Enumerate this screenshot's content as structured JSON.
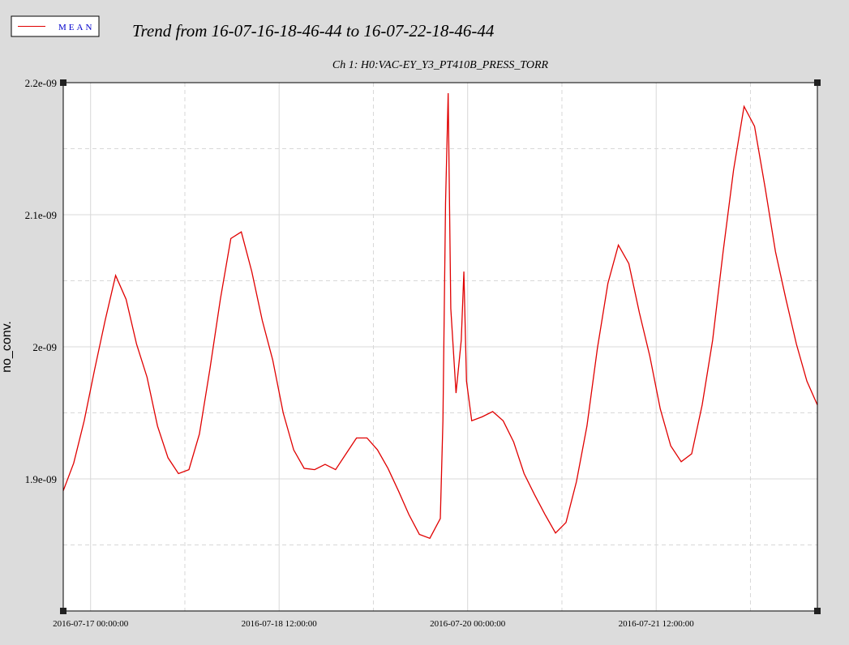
{
  "chart_data": {
    "type": "line",
    "title": "Trend from 16-07-16-18-46-44 to 16-07-22-18-46-44",
    "subtitle": "Ch 1: H0:VAC-EY_Y3_PT410B_PRESS_TORR",
    "ylabel": "no_conv.",
    "grid": true,
    "legend": "top-left",
    "xlim": [
      "2016-07-16 18:46:44",
      "2016-07-22 18:46:44"
    ],
    "xticks": [
      "2016-07-17 00:00:00",
      "2016-07-18 12:00:00",
      "2016-07-20 00:00:00",
      "2016-07-21 12:00:00"
    ],
    "x_minor_ticks": [
      "2016-07-17 18:00:00",
      "2016-07-19 06:00:00",
      "2016-07-20 18:00:00",
      "2016-07-22 06:00:00"
    ],
    "ylim": [
      1.8e-09,
      2.2e-09
    ],
    "yticks": [
      {
        "value": 1.9e-09,
        "label": "1.9e-09"
      },
      {
        "value": 2e-09,
        "label": "2e-09"
      },
      {
        "value": 2.1e-09,
        "label": "2.1e-09"
      },
      {
        "value": 2.2e-09,
        "label": "2.2e-09"
      }
    ],
    "y_minor_ticks": [
      1.85e-09,
      1.95e-09,
      2.05e-09,
      2.15e-09
    ],
    "x": [
      "2016-07-16 18:46:44",
      "2016-07-16 20:46:44",
      "2016-07-16 22:46:44",
      "2016-07-17 00:46:44",
      "2016-07-17 02:46:44",
      "2016-07-17 04:46:44",
      "2016-07-17 06:46:44",
      "2016-07-17 08:46:44",
      "2016-07-17 10:46:44",
      "2016-07-17 12:46:44",
      "2016-07-17 14:46:44",
      "2016-07-17 16:46:44",
      "2016-07-17 18:46:44",
      "2016-07-17 20:46:44",
      "2016-07-17 22:46:44",
      "2016-07-18 00:46:44",
      "2016-07-18 02:46:44",
      "2016-07-18 04:46:44",
      "2016-07-18 06:46:44",
      "2016-07-18 08:46:44",
      "2016-07-18 10:46:44",
      "2016-07-18 12:46:44",
      "2016-07-18 14:46:44",
      "2016-07-18 16:46:44",
      "2016-07-18 18:46:44",
      "2016-07-18 20:46:44",
      "2016-07-18 22:46:44",
      "2016-07-19 00:46:44",
      "2016-07-19 02:46:44",
      "2016-07-19 04:46:44",
      "2016-07-19 06:46:44",
      "2016-07-19 08:46:44",
      "2016-07-19 10:46:44",
      "2016-07-19 12:46:44",
      "2016-07-19 14:46:44",
      "2016-07-19 16:46:44",
      "2016-07-19 18:46:44",
      "2016-07-19 19:16:44",
      "2016-07-19 19:46:44",
      "2016-07-19 20:16:44",
      "2016-07-19 20:46:44",
      "2016-07-19 21:46:44",
      "2016-07-19 22:46:44",
      "2016-07-19 23:16:44",
      "2016-07-19 23:46:44",
      "2016-07-20 00:46:44",
      "2016-07-20 02:46:44",
      "2016-07-20 04:46:44",
      "2016-07-20 06:46:44",
      "2016-07-20 08:46:44",
      "2016-07-20 10:46:44",
      "2016-07-20 12:46:44",
      "2016-07-20 14:46:44",
      "2016-07-20 16:46:44",
      "2016-07-20 18:46:44",
      "2016-07-20 20:46:44",
      "2016-07-20 22:46:44",
      "2016-07-21 00:46:44",
      "2016-07-21 02:46:44",
      "2016-07-21 04:46:44",
      "2016-07-21 06:46:44",
      "2016-07-21 08:46:44",
      "2016-07-21 10:46:44",
      "2016-07-21 12:46:44",
      "2016-07-21 14:46:44",
      "2016-07-21 16:46:44",
      "2016-07-21 18:46:44",
      "2016-07-21 20:46:44",
      "2016-07-21 22:46:44",
      "2016-07-22 00:46:44",
      "2016-07-22 02:46:44",
      "2016-07-22 04:46:44",
      "2016-07-22 06:46:44",
      "2016-07-22 08:46:44",
      "2016-07-22 10:46:44",
      "2016-07-22 12:46:44",
      "2016-07-22 14:46:44",
      "2016-07-22 16:46:44",
      "2016-07-22 18:46:44"
    ],
    "series": [
      {
        "name": "MEAN",
        "color": "#e00000",
        "legend_text_color": "#0000cc",
        "values": [
          1.891e-09,
          1.912e-09,
          1.944e-09,
          1.983e-09,
          2.02e-09,
          2.054e-09,
          2.036e-09,
          2.002e-09,
          1.977e-09,
          1.94e-09,
          1.916e-09,
          1.904e-09,
          1.907e-09,
          1.934e-09,
          1.983e-09,
          2.036e-09,
          2.082e-09,
          2.087e-09,
          2.057e-09,
          2.02e-09,
          1.99e-09,
          1.95e-09,
          1.922e-09,
          1.908e-09,
          1.907e-09,
          1.911e-09,
          1.907e-09,
          1.919e-09,
          1.931e-09,
          1.931e-09,
          1.922e-09,
          1.908e-09,
          1.891e-09,
          1.873e-09,
          1.858e-09,
          1.855e-09,
          1.87e-09,
          1.944e-09,
          2.109e-09,
          2.192e-09,
          2.029e-09,
          1.965e-09,
          2.005e-09,
          2.057e-09,
          1.974e-09,
          1.944e-09,
          1.947e-09,
          1.951e-09,
          1.944e-09,
          1.928e-09,
          1.904e-09,
          1.888e-09,
          1.873e-09,
          1.859e-09,
          1.867e-09,
          1.898e-09,
          1.94e-09,
          1.999e-09,
          2.048e-09,
          2.077e-09,
          2.063e-09,
          2.026e-09,
          1.993e-09,
          1.953e-09,
          1.925e-09,
          1.913e-09,
          1.919e-09,
          1.956e-09,
          2.005e-09,
          2.072e-09,
          2.134e-09,
          2.182e-09,
          2.167e-09,
          2.121e-09,
          2.072e-09,
          2.036e-09,
          2.002e-09,
          1.974e-09,
          1.956e-09
        ]
      }
    ]
  }
}
